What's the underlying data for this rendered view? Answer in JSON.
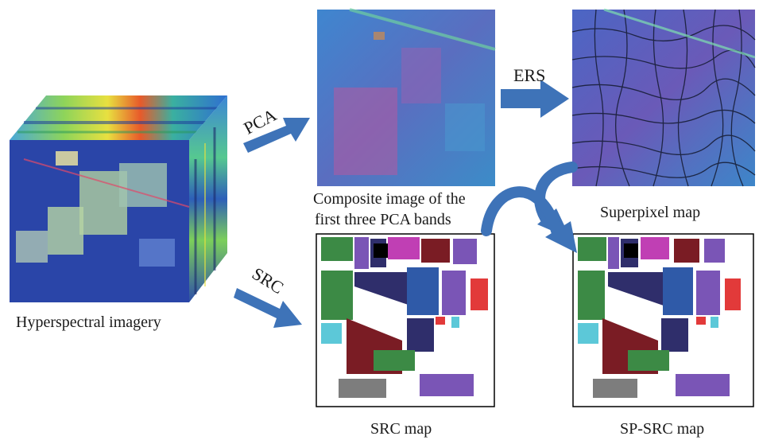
{
  "labels": {
    "hyperspectral": "Hyperspectral imagery",
    "composite_line1": "Composite image of the",
    "composite_line2": "first three PCA bands",
    "superpixel": "Superpixel map",
    "src_map": "SRC map",
    "spsrc_map": "SP-SRC map"
  },
  "arrows": {
    "pca": "PCA",
    "ers": "ERS",
    "src": "SRC"
  },
  "colors": {
    "arrow": "#3e73b8",
    "cube_top": "#3ab0a0",
    "composite_bg": "#3a7fc8",
    "superpixel_bg": "#3f7cc9",
    "class_maroon": "#7a1c24",
    "class_navy": "#2f2e6b",
    "class_green": "#3c8a45",
    "class_purple": "#7a55b6",
    "class_red": "#e23a3a",
    "class_cyan": "#5cc8d8",
    "class_magenta": "#c03fb4"
  }
}
